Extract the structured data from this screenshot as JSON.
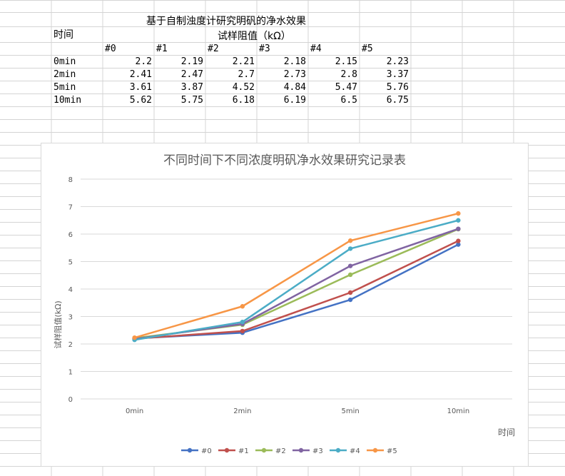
{
  "sheet": {
    "title": "基于自制浊度计研究明矾的净水效果",
    "time_header": "时间",
    "value_header": "试样阻值（kΩ）",
    "columns": [
      "#0",
      "#1",
      "#2",
      "#3",
      "#4",
      "#5"
    ],
    "rows": [
      {
        "label": "0min",
        "values": [
          "2.2",
          "2.19",
          "2.21",
          "2.18",
          "2.15",
          "2.23"
        ]
      },
      {
        "label": "2min",
        "values": [
          "2.41",
          "2.47",
          "2.7",
          "2.73",
          "2.8",
          "3.37"
        ]
      },
      {
        "label": "5min",
        "values": [
          "3.61",
          "3.87",
          "4.52",
          "4.84",
          "5.47",
          "5.76"
        ]
      },
      {
        "label": "10min",
        "values": [
          "5.62",
          "5.75",
          "6.18",
          "6.19",
          "6.5",
          "6.75"
        ]
      }
    ]
  },
  "chart_data": {
    "type": "line",
    "title": "不同时间下不同浓度明矾净水效果研究记录表",
    "xlabel": "时间",
    "ylabel": "试样阻值(kΩ)",
    "categories": [
      "0min",
      "2min",
      "5min",
      "10min"
    ],
    "ylim": [
      0,
      8
    ],
    "yticks": [
      "0",
      "1",
      "2",
      "3",
      "4",
      "5",
      "6",
      "7",
      "8"
    ],
    "grid": true,
    "legend": "bottom",
    "series": [
      {
        "name": "#0",
        "color": "#4472c4",
        "values": [
          2.2,
          2.41,
          3.61,
          5.62
        ]
      },
      {
        "name": "#1",
        "color": "#c0504d",
        "values": [
          2.19,
          2.47,
          3.87,
          5.75
        ]
      },
      {
        "name": "#2",
        "color": "#9bbb59",
        "values": [
          2.21,
          2.7,
          4.52,
          6.18
        ]
      },
      {
        "name": "#3",
        "color": "#8064a2",
        "values": [
          2.18,
          2.73,
          4.84,
          6.19
        ]
      },
      {
        "name": "#4",
        "color": "#4bacc6",
        "values": [
          2.15,
          2.8,
          5.47,
          6.5
        ]
      },
      {
        "name": "#5",
        "color": "#f79646",
        "values": [
          2.23,
          3.37,
          5.76,
          6.75
        ]
      }
    ]
  }
}
